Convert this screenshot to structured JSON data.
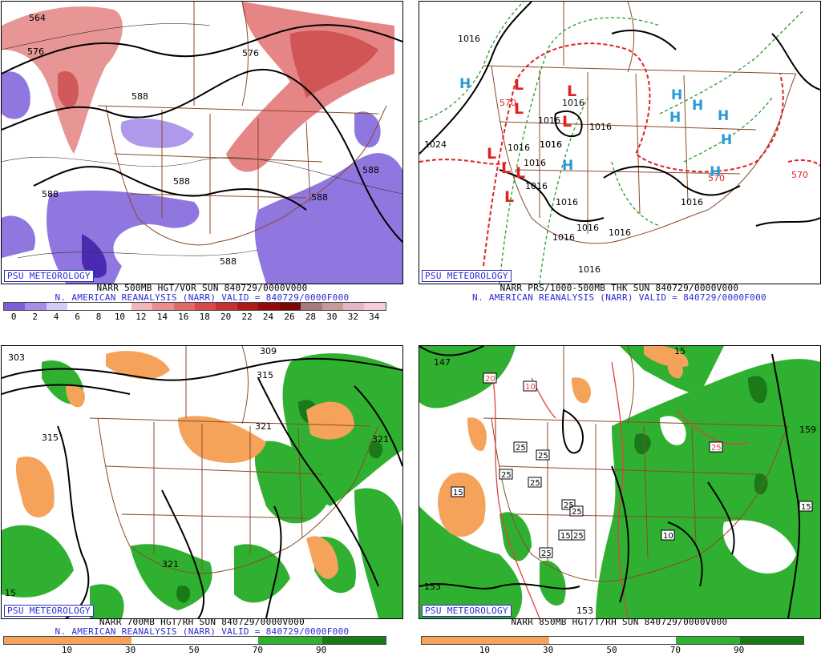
{
  "badge": "PSU METEOROLOGY",
  "panels": {
    "p1": {
      "caption_line1": "NARR 500MB HGT/VOR SUN 840729/0000V000",
      "caption_line2": "N. AMERICAN REANALYSIS (NARR) VALID = 840729/0000F000",
      "colorbar_labels": [
        "0",
        "2",
        "4",
        "6",
        "8",
        "10",
        "12",
        "14",
        "16",
        "18",
        "20",
        "22",
        "24",
        "26",
        "28",
        "30",
        "32",
        "34"
      ],
      "colorbar_colors": [
        "#7b5fd9",
        "#a58ee8",
        "#d6ccf5",
        "#ffffff",
        "#ffffff",
        "#ffffff",
        "#f2b6b6",
        "#ea8d8d",
        "#e06a6a",
        "#d64a4a",
        "#c63030",
        "#b01818",
        "#930c0c",
        "#7a0606",
        "#a47a7a",
        "#c89a9a",
        "#e2b6c4",
        "#f5cdd8"
      ],
      "contour_labels": [
        "564",
        "576",
        "576",
        "588",
        "588",
        "588",
        "588",
        "588",
        "588"
      ]
    },
    "p2": {
      "caption_line1": "NARR PRS/1000-500MB THK SUN 840729/0000V000",
      "caption_line2": "N. AMERICAN REANALYSIS (NARR) VALID = 840729/0000F000",
      "contour_labels": [
        "1016",
        "1024",
        "1016",
        "1016",
        "1016",
        "1016",
        "1016",
        "1016",
        "1016",
        "1016",
        "1016",
        "1016",
        "1016",
        "1016",
        "1016",
        "1016",
        "570",
        "570",
        "570"
      ],
      "highs": [
        "H",
        "H",
        "H",
        "H",
        "H",
        "H",
        "H",
        "H"
      ],
      "lows": [
        "L",
        "L",
        "L",
        "L",
        "L",
        "L",
        "L",
        "L"
      ]
    },
    "p3": {
      "caption_line1": "NARR 700MB HGT/RH SUN 840729/0000V000",
      "caption_line2": "N. AMERICAN REANALYSIS (NARR) VALID = 840729/0000F000",
      "colorbar_labels": [
        "10",
        "30",
        "50",
        "70",
        "90"
      ],
      "colorbar_colors": [
        "#f5a25a",
        "#f5a25a",
        "#ffffff",
        "#ffffff",
        "#30b030",
        "#1a7a1a"
      ],
      "contour_labels": [
        "303",
        "309",
        "315",
        "315",
        "321",
        "321",
        "15"
      ]
    },
    "p4": {
      "caption_line1": "NARR 850MB HGT/T/RH SUN 840729/0000V000",
      "colorbar_labels": [
        "10",
        "30",
        "50",
        "70",
        "90"
      ],
      "colorbar_colors": [
        "#f5a25a",
        "#f5a25a",
        "#ffffff",
        "#ffffff",
        "#30b030",
        "#1a7a1a"
      ],
      "contour_labels": [
        "147",
        "153",
        "153",
        "159",
        "15",
        "15",
        "15",
        "10",
        "20",
        "10",
        "25",
        "25",
        "25",
        "25",
        "25",
        "25",
        "25",
        "25",
        "15"
      ]
    }
  },
  "colors": {
    "border": "#8b4a2a",
    "vort_purple": "#7b5fd9",
    "vort_red": "#e06a6a",
    "rh_green": "#30b030",
    "rh_dark_green": "#1a7a1a",
    "rh_orange": "#f5a25a",
    "thk_red": "#e02020",
    "thk_green": "#2a9a2a",
    "high_blue": "#2a9ad8",
    "low_red": "#e02020",
    "text_blue": "#2a2ad0"
  }
}
